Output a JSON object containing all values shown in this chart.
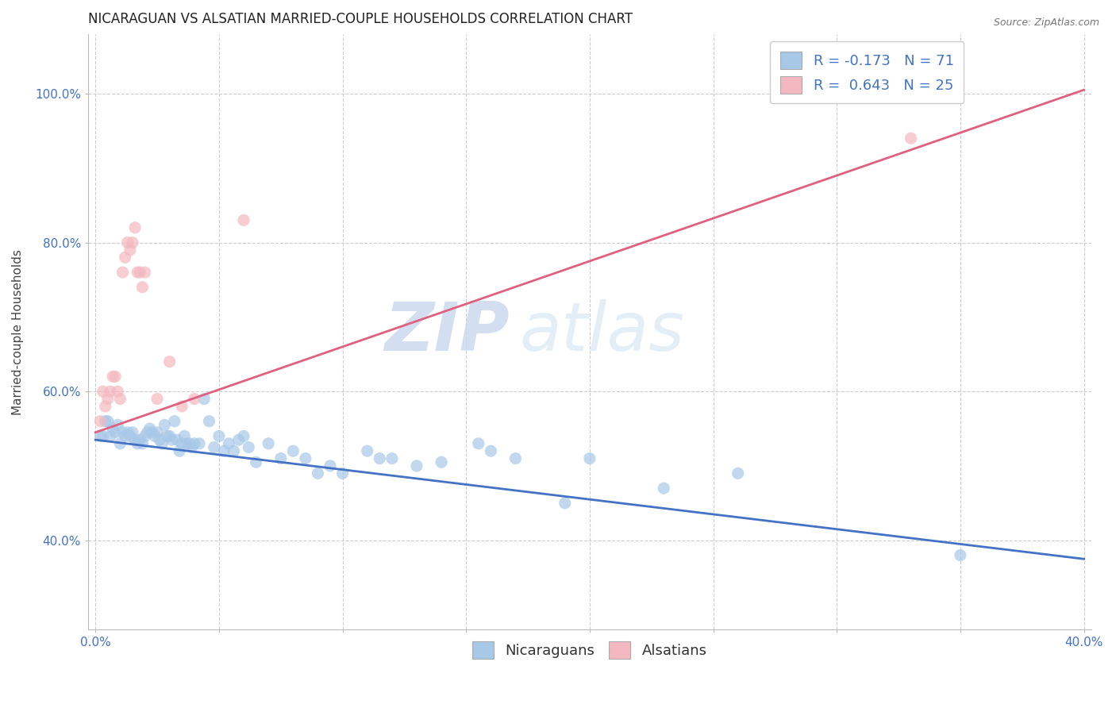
{
  "title": "NICARAGUAN VS ALSATIAN MARRIED-COUPLE HOUSEHOLDS CORRELATION CHART",
  "source": "Source: ZipAtlas.com",
  "ylabel": "Married-couple Households",
  "xlim": [
    -0.003,
    0.403
  ],
  "ylim": [
    0.28,
    1.08
  ],
  "xticks": [
    0.0,
    0.05,
    0.1,
    0.15,
    0.2,
    0.25,
    0.3,
    0.35,
    0.4
  ],
  "yticks": [
    0.4,
    0.6,
    0.8,
    1.0
  ],
  "ytick_labels": [
    "40.0%",
    "60.0%",
    "80.0%",
    "100.0%"
  ],
  "xtick_labels": [
    "0.0%",
    "",
    "",
    "",
    "",
    "",
    "",
    "",
    "40.0%"
  ],
  "legend_blue_label": "R = -0.173   N = 71",
  "legend_pink_label": "R =  0.643   N = 25",
  "blue_color": "#a8c8e8",
  "pink_color": "#f4b8c0",
  "blue_line_color": "#4472c4",
  "pink_line_color": "#e06080",
  "legend_text_color": "#4472c4",
  "watermark_zip": "ZIP",
  "watermark_atlas": "atlas",
  "nicaraguan_points": [
    [
      0.002,
      0.54
    ],
    [
      0.003,
      0.54
    ],
    [
      0.004,
      0.56
    ],
    [
      0.005,
      0.56
    ],
    [
      0.006,
      0.54
    ],
    [
      0.007,
      0.55
    ],
    [
      0.008,
      0.545
    ],
    [
      0.009,
      0.555
    ],
    [
      0.01,
      0.53
    ],
    [
      0.011,
      0.545
    ],
    [
      0.012,
      0.54
    ],
    [
      0.013,
      0.545
    ],
    [
      0.014,
      0.54
    ],
    [
      0.015,
      0.545
    ],
    [
      0.016,
      0.535
    ],
    [
      0.017,
      0.53
    ],
    [
      0.018,
      0.535
    ],
    [
      0.019,
      0.53
    ],
    [
      0.02,
      0.54
    ],
    [
      0.021,
      0.545
    ],
    [
      0.022,
      0.55
    ],
    [
      0.023,
      0.545
    ],
    [
      0.024,
      0.54
    ],
    [
      0.025,
      0.545
    ],
    [
      0.026,
      0.535
    ],
    [
      0.027,
      0.53
    ],
    [
      0.028,
      0.555
    ],
    [
      0.029,
      0.54
    ],
    [
      0.03,
      0.54
    ],
    [
      0.031,
      0.535
    ],
    [
      0.032,
      0.56
    ],
    [
      0.033,
      0.535
    ],
    [
      0.034,
      0.52
    ],
    [
      0.035,
      0.53
    ],
    [
      0.036,
      0.54
    ],
    [
      0.037,
      0.53
    ],
    [
      0.038,
      0.53
    ],
    [
      0.039,
      0.525
    ],
    [
      0.04,
      0.53
    ],
    [
      0.042,
      0.53
    ],
    [
      0.044,
      0.59
    ],
    [
      0.046,
      0.56
    ],
    [
      0.048,
      0.525
    ],
    [
      0.05,
      0.54
    ],
    [
      0.052,
      0.52
    ],
    [
      0.054,
      0.53
    ],
    [
      0.056,
      0.52
    ],
    [
      0.058,
      0.535
    ],
    [
      0.06,
      0.54
    ],
    [
      0.062,
      0.525
    ],
    [
      0.065,
      0.505
    ],
    [
      0.07,
      0.53
    ],
    [
      0.075,
      0.51
    ],
    [
      0.08,
      0.52
    ],
    [
      0.085,
      0.51
    ],
    [
      0.09,
      0.49
    ],
    [
      0.095,
      0.5
    ],
    [
      0.1,
      0.49
    ],
    [
      0.11,
      0.52
    ],
    [
      0.115,
      0.51
    ],
    [
      0.12,
      0.51
    ],
    [
      0.13,
      0.5
    ],
    [
      0.14,
      0.505
    ],
    [
      0.155,
      0.53
    ],
    [
      0.16,
      0.52
    ],
    [
      0.17,
      0.51
    ],
    [
      0.19,
      0.45
    ],
    [
      0.2,
      0.51
    ],
    [
      0.23,
      0.47
    ],
    [
      0.26,
      0.49
    ],
    [
      0.35,
      0.38
    ]
  ],
  "alsatian_points": [
    [
      0.002,
      0.56
    ],
    [
      0.003,
      0.6
    ],
    [
      0.004,
      0.58
    ],
    [
      0.005,
      0.59
    ],
    [
      0.006,
      0.6
    ],
    [
      0.007,
      0.62
    ],
    [
      0.008,
      0.62
    ],
    [
      0.009,
      0.6
    ],
    [
      0.01,
      0.59
    ],
    [
      0.011,
      0.76
    ],
    [
      0.012,
      0.78
    ],
    [
      0.013,
      0.8
    ],
    [
      0.014,
      0.79
    ],
    [
      0.015,
      0.8
    ],
    [
      0.016,
      0.82
    ],
    [
      0.017,
      0.76
    ],
    [
      0.018,
      0.76
    ],
    [
      0.019,
      0.74
    ],
    [
      0.02,
      0.76
    ],
    [
      0.025,
      0.59
    ],
    [
      0.03,
      0.64
    ],
    [
      0.035,
      0.58
    ],
    [
      0.04,
      0.59
    ],
    [
      0.06,
      0.83
    ],
    [
      0.33,
      0.94
    ]
  ],
  "blue_line": [
    [
      0.0,
      0.535
    ],
    [
      0.4,
      0.375
    ]
  ],
  "pink_line": [
    [
      0.0,
      0.545
    ],
    [
      0.4,
      1.005
    ]
  ],
  "background_color": "#ffffff",
  "grid_color": "#cccccc",
  "title_fontsize": 12,
  "axis_label_fontsize": 11,
  "tick_fontsize": 11,
  "legend_fontsize": 13
}
